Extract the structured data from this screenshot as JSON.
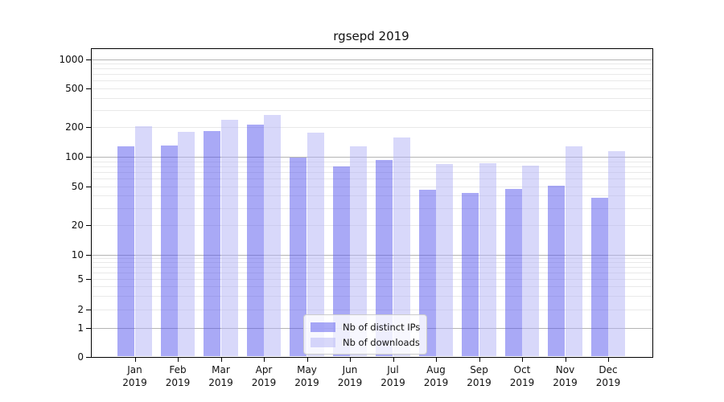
{
  "chart_data": {
    "type": "bar",
    "title": "rgsepd 2019",
    "categories": [
      "Jan",
      "Feb",
      "Mar",
      "Apr",
      "May",
      "Jun",
      "Jul",
      "Aug",
      "Sep",
      "Oct",
      "Nov",
      "Dec"
    ],
    "category_year": "2019",
    "series": [
      {
        "name": "Nb of distinct IPs",
        "fill": "rgba(83,83,237,0.5)",
        "values": [
          127,
          131,
          183,
          215,
          98,
          80,
          93,
          46,
          43,
          47,
          51,
          38
        ]
      },
      {
        "name": "Nb of downloads",
        "fill": "rgba(177,177,245,0.5)",
        "values": [
          205,
          180,
          238,
          270,
          176,
          127,
          158,
          85,
          86,
          81,
          127,
          114
        ]
      }
    ],
    "yscale": "symlog",
    "ylim": [
      0,
      1000
    ],
    "yticks": [
      1000,
      500,
      200,
      100,
      50,
      20,
      10,
      5,
      2,
      1,
      0
    ],
    "grid": {
      "major_ticks": [
        1,
        10,
        100,
        1000
      ],
      "minor_ticks": [
        2,
        3,
        4,
        5,
        6,
        7,
        8,
        9,
        20,
        30,
        40,
        50,
        60,
        70,
        80,
        90,
        200,
        300,
        400,
        500,
        600,
        700,
        800,
        900
      ],
      "major_color": "#b4b4b4",
      "minor_color": "#e9e9e9"
    },
    "legend_position": "lower center",
    "axis_color": "#000000",
    "background": "#ffffff"
  }
}
